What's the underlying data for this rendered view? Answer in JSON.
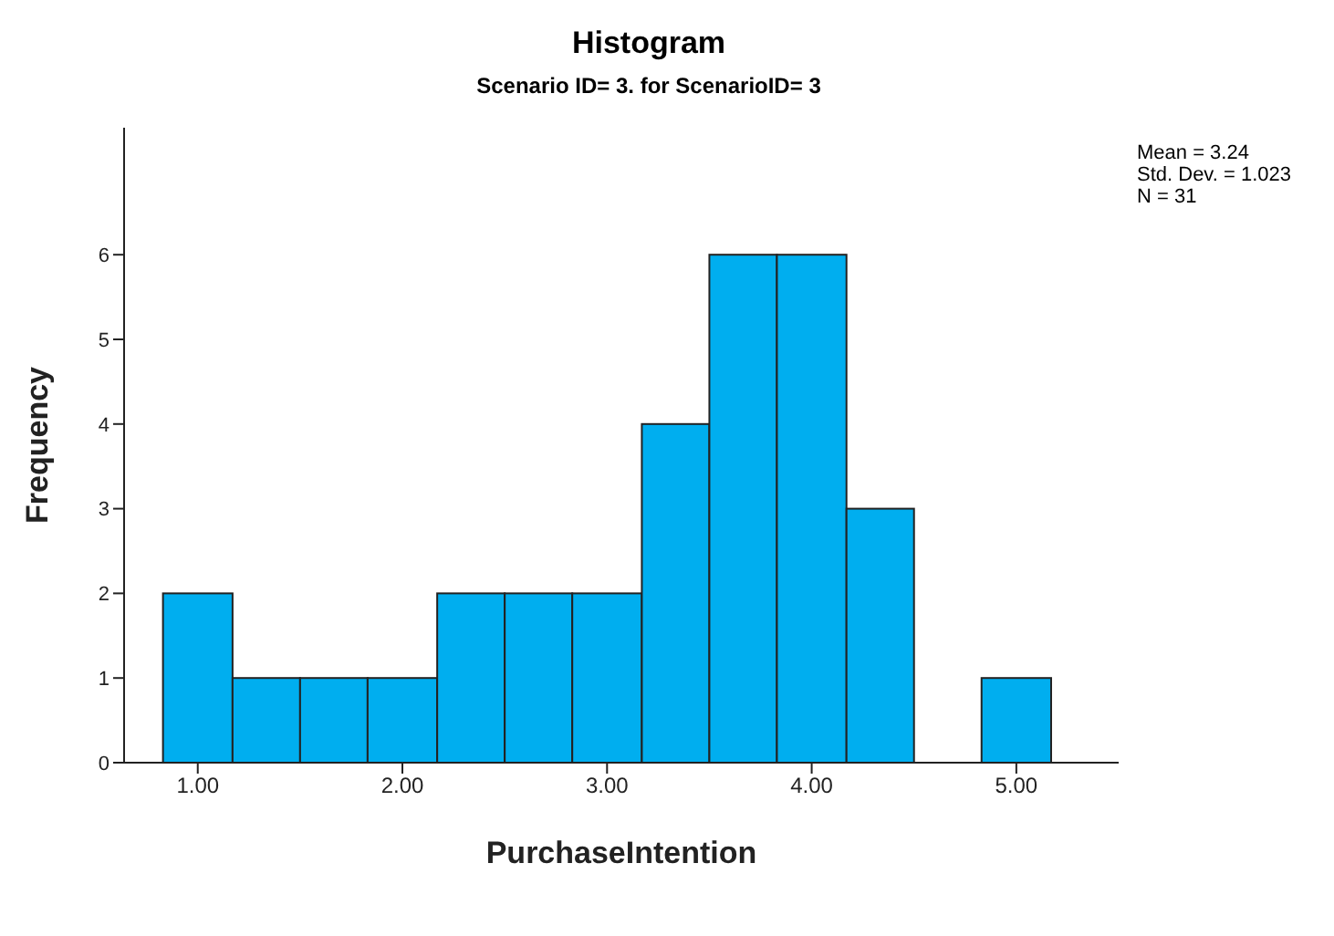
{
  "chart_data": {
    "type": "histogram",
    "title": "Histogram",
    "subtitle": "Scenario ID= 3.  for ScenarioID= 3",
    "xlabel": "PurchaseIntention",
    "ylabel": "Frequency",
    "bins": [
      0.83,
      1.17,
      1.5,
      1.83,
      2.17,
      2.5,
      2.83,
      3.17,
      3.5,
      3.83,
      4.17,
      4.5,
      4.83,
      5.17
    ],
    "values": [
      2,
      1,
      1,
      1,
      2,
      2,
      2,
      4,
      6,
      6,
      3,
      0,
      1
    ],
    "color": "#00aeef",
    "xlim": [
      0.64,
      5.5
    ],
    "xticks": [
      {
        "value": 1,
        "label": "1.00"
      },
      {
        "value": 2,
        "label": "2.00"
      },
      {
        "value": 3,
        "label": "3.00"
      },
      {
        "value": 4,
        "label": "4.00"
      },
      {
        "value": 5,
        "label": "5.00"
      }
    ],
    "ylim": [
      0,
      7.5
    ],
    "yticks": [
      0,
      1,
      2,
      3,
      4,
      5,
      6
    ],
    "annotations": [
      "Mean = 3.24",
      "Std. Dev. = 1.023",
      "N = 31"
    ],
    "grid": false,
    "legend": false
  }
}
